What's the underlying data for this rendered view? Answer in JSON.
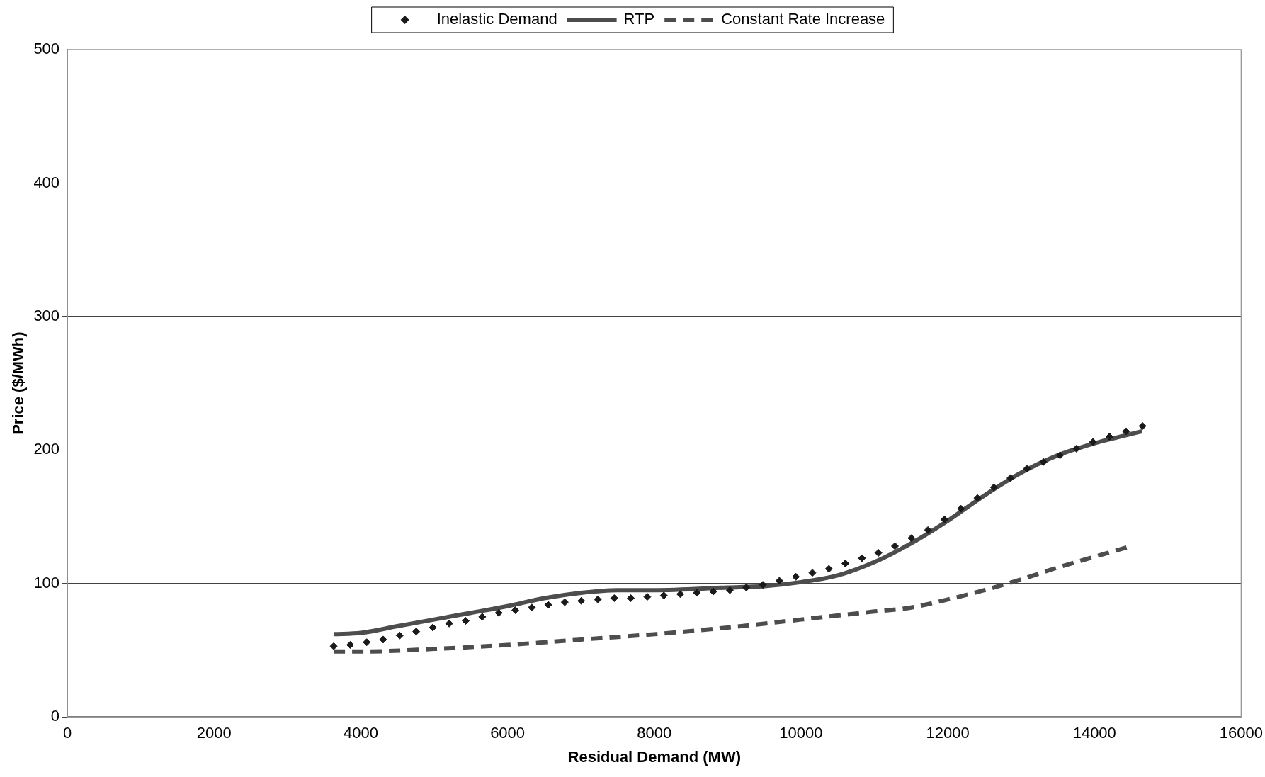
{
  "chart_data": {
    "type": "line",
    "xlabel": "Residual Demand (MW)",
    "ylabel": "Price ($/MWh)",
    "xlim": [
      0,
      16000
    ],
    "xticks": [
      0,
      {
        "value": 2000,
        "label": "2000"
      },
      {
        "value": 4000,
        "label": "4000"
      },
      {
        "value": 6000,
        "label": "6000"
      },
      {
        "value": 8000,
        "label": "8000"
      },
      {
        "value": 10000,
        "label": "10000"
      },
      {
        "value": 12000,
        "label": "12000"
      },
      {
        "value": 14000,
        "label": "14000"
      },
      {
        "value": 16000,
        "label": "16000"
      }
    ],
    "ylim": [
      0,
      500
    ],
    "yticks": [
      0,
      100,
      200,
      300,
      400,
      500
    ],
    "grid": "y",
    "legend": "top",
    "series": [
      {
        "name": "Inelastic Demand",
        "type": "scatter",
        "marker": "diamond",
        "color": "#1a1a1a",
        "x": [
          3630,
          3855,
          4080,
          4305,
          4530,
          4755,
          4980,
          5205,
          5430,
          5655,
          5880,
          6105,
          6330,
          6555,
          6780,
          7005,
          7230,
          7455,
          7680,
          7905,
          8130,
          8355,
          8580,
          8805,
          9030,
          9255,
          9480,
          9705,
          9930,
          10155,
          10380,
          10605,
          10830,
          11055,
          11280,
          11505,
          11730,
          11955,
          12180,
          12405,
          12630,
          12855,
          13080,
          13305,
          13530,
          13755,
          13980,
          14205,
          14430,
          14655
        ],
        "values": [
          53,
          54,
          56,
          58,
          61,
          64,
          67,
          70,
          72,
          75,
          78,
          80,
          82,
          84,
          86,
          87,
          88,
          89,
          89,
          90,
          91,
          92,
          93,
          94,
          95,
          97,
          99,
          102,
          105,
          108,
          111,
          115,
          119,
          123,
          128,
          134,
          140,
          148,
          156,
          164,
          172,
          179,
          186,
          191,
          196,
          201,
          206,
          210,
          214,
          218
        ]
      },
      {
        "name": "RTP",
        "marker": "none",
        "line_style": "solid",
        "color": "#4d4d4d",
        "x": [
          3630,
          4000,
          4500,
          5000,
          5500,
          6000,
          6500,
          7000,
          7500,
          8000,
          9000,
          9500,
          10000,
          10500,
          11000,
          11500,
          12000,
          12500,
          13000,
          13500,
          14000,
          14650
        ],
        "values": [
          62,
          63,
          68,
          73,
          78,
          83,
          89,
          93,
          95,
          95,
          97,
          98,
          101,
          106,
          116,
          130,
          147,
          166,
          183,
          196,
          205,
          214
        ]
      },
      {
        "name": "Constant Rate Increase",
        "marker": "none",
        "line_style": "dashed",
        "color": "#4d4d4d",
        "x": [
          3630,
          4000,
          5000,
          6000,
          7000,
          8000,
          9000,
          10000,
          11000,
          11500,
          12000,
          12500,
          13000,
          13500,
          14000,
          14500
        ],
        "values": [
          49,
          49,
          51,
          54,
          58,
          62,
          67,
          73,
          79,
          82,
          88,
          95,
          103,
          112,
          120,
          128
        ]
      }
    ]
  }
}
